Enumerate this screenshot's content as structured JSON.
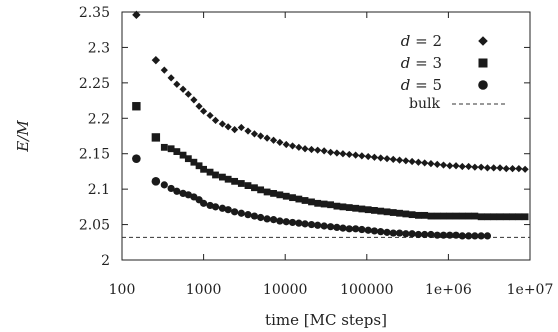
{
  "chart_data": {
    "type": "scatter",
    "xlabel": "time [MC steps]",
    "ylabel": "E/M",
    "x_scale": "log",
    "xlim": [
      100,
      10000000
    ],
    "ylim": [
      2,
      2.35
    ],
    "x_ticks": [
      100,
      1000,
      10000,
      100000,
      1000000,
      10000000
    ],
    "x_tick_labels": [
      "100",
      "1000",
      "10000",
      "100000",
      "1e+06",
      "1e+07"
    ],
    "y_ticks": [
      2,
      2.05,
      2.1,
      2.15,
      2.2,
      2.25,
      2.3,
      2.35
    ],
    "y_tick_labels": [
      "2",
      "2.05",
      "2.1",
      "2.15",
      "2.2",
      "2.25",
      "2.3",
      "2.35"
    ],
    "legend_position": "top-right",
    "grid": false,
    "series": [
      {
        "name": "d = 2",
        "legend_var": "d",
        "legend_value": "= 2",
        "marker": "diamond",
        "color": "#1a1a1a",
        "x": [
          150,
          260,
          330,
          400,
          470,
          560,
          650,
          760,
          880,
          1000,
          1200,
          1400,
          1700,
          2000,
          2400,
          2900,
          3500,
          4200,
          5000,
          6000,
          7200,
          8600,
          10300,
          12300,
          14700,
          17500,
          21000,
          25000,
          30000,
          36000,
          43000,
          51000,
          61000,
          73000,
          87000,
          104000,
          124000,
          148000,
          177000,
          211000,
          252000,
          301000,
          359000,
          429000,
          512000,
          611000,
          730000,
          871000,
          1040000,
          1240000,
          1480000,
          1770000,
          2110000,
          2520000,
          3010000,
          3590000,
          4290000,
          5120000,
          6110000,
          7300000,
          8710000
        ],
        "y": [
          2.346,
          2.282,
          2.268,
          2.257,
          2.248,
          2.241,
          2.234,
          2.226,
          2.217,
          2.21,
          2.204,
          2.197,
          2.192,
          2.188,
          2.184,
          2.187,
          2.182,
          2.178,
          2.175,
          2.172,
          2.169,
          2.166,
          2.163,
          2.161,
          2.159,
          2.157,
          2.156,
          2.155,
          2.154,
          2.152,
          2.151,
          2.15,
          2.149,
          2.148,
          2.147,
          2.146,
          2.145,
          2.144,
          2.143,
          2.142,
          2.141,
          2.14,
          2.139,
          2.138,
          2.137,
          2.136,
          2.135,
          2.134,
          2.133,
          2.133,
          2.132,
          2.132,
          2.131,
          2.131,
          2.13,
          2.13,
          2.13,
          2.129,
          2.129,
          2.129,
          2.128
        ]
      },
      {
        "name": "d = 3",
        "legend_var": "d",
        "legend_value": "= 3",
        "marker": "square",
        "color": "#1a1a1a",
        "x": [
          150,
          260,
          330,
          400,
          470,
          560,
          650,
          760,
          880,
          1000,
          1200,
          1400,
          1700,
          2000,
          2400,
          2900,
          3500,
          4200,
          5000,
          6000,
          7200,
          8600,
          10300,
          12300,
          14700,
          17500,
          21000,
          25000,
          30000,
          36000,
          43000,
          51000,
          61000,
          73000,
          87000,
          104000,
          124000,
          148000,
          177000,
          211000,
          252000,
          301000,
          359000,
          429000,
          512000,
          611000,
          730000,
          871000,
          1040000,
          1240000,
          1480000,
          1770000,
          2110000,
          2520000,
          3010000,
          3590000,
          4290000,
          5120000,
          6110000,
          7300000,
          8710000
        ],
        "y": [
          2.217,
          2.173,
          2.159,
          2.157,
          2.153,
          2.148,
          2.143,
          2.138,
          2.133,
          2.128,
          2.124,
          2.12,
          2.117,
          2.114,
          2.111,
          2.108,
          2.105,
          2.102,
          2.099,
          2.096,
          2.094,
          2.092,
          2.09,
          2.088,
          2.086,
          2.084,
          2.082,
          2.08,
          2.079,
          2.078,
          2.076,
          2.075,
          2.074,
          2.073,
          2.072,
          2.071,
          2.07,
          2.069,
          2.068,
          2.067,
          2.066,
          2.065,
          2.064,
          2.063,
          2.063,
          2.062,
          2.062,
          2.062,
          2.062,
          2.062,
          2.062,
          2.062,
          2.062,
          2.061,
          2.061,
          2.061,
          2.061,
          2.061,
          2.061,
          2.061,
          2.061
        ]
      },
      {
        "name": "d = 5",
        "legend_var": "d",
        "legend_value": "= 5",
        "marker": "circle",
        "color": "#1a1a1a",
        "x": [
          150,
          260,
          330,
          400,
          470,
          560,
          650,
          760,
          880,
          1000,
          1200,
          1400,
          1700,
          2000,
          2400,
          2900,
          3500,
          4200,
          5000,
          6000,
          7200,
          8600,
          10300,
          12300,
          14700,
          17500,
          21000,
          25000,
          30000,
          36000,
          43000,
          51000,
          61000,
          73000,
          87000,
          104000,
          124000,
          148000,
          177000,
          211000,
          252000,
          301000,
          359000,
          429000,
          512000,
          611000,
          730000,
          871000,
          1040000,
          1240000,
          1480000,
          1770000,
          2110000,
          2520000,
          3010000
        ],
        "y": [
          2.143,
          2.111,
          2.106,
          2.101,
          2.097,
          2.094,
          2.092,
          2.089,
          2.085,
          2.08,
          2.077,
          2.075,
          2.073,
          2.071,
          2.068,
          2.066,
          2.064,
          2.062,
          2.06,
          2.058,
          2.057,
          2.055,
          2.054,
          2.053,
          2.052,
          2.051,
          2.05,
          2.049,
          2.048,
          2.047,
          2.046,
          2.045,
          2.044,
          2.044,
          2.043,
          2.042,
          2.041,
          2.04,
          2.039,
          2.038,
          2.038,
          2.037,
          2.037,
          2.036,
          2.036,
          2.036,
          2.035,
          2.035,
          2.035,
          2.035,
          2.034,
          2.034,
          2.034,
          2.034,
          2.034
        ]
      },
      {
        "name": "bulk",
        "marker": "dashed-line",
        "color": "#333333",
        "y_constant": 2.032
      }
    ]
  }
}
